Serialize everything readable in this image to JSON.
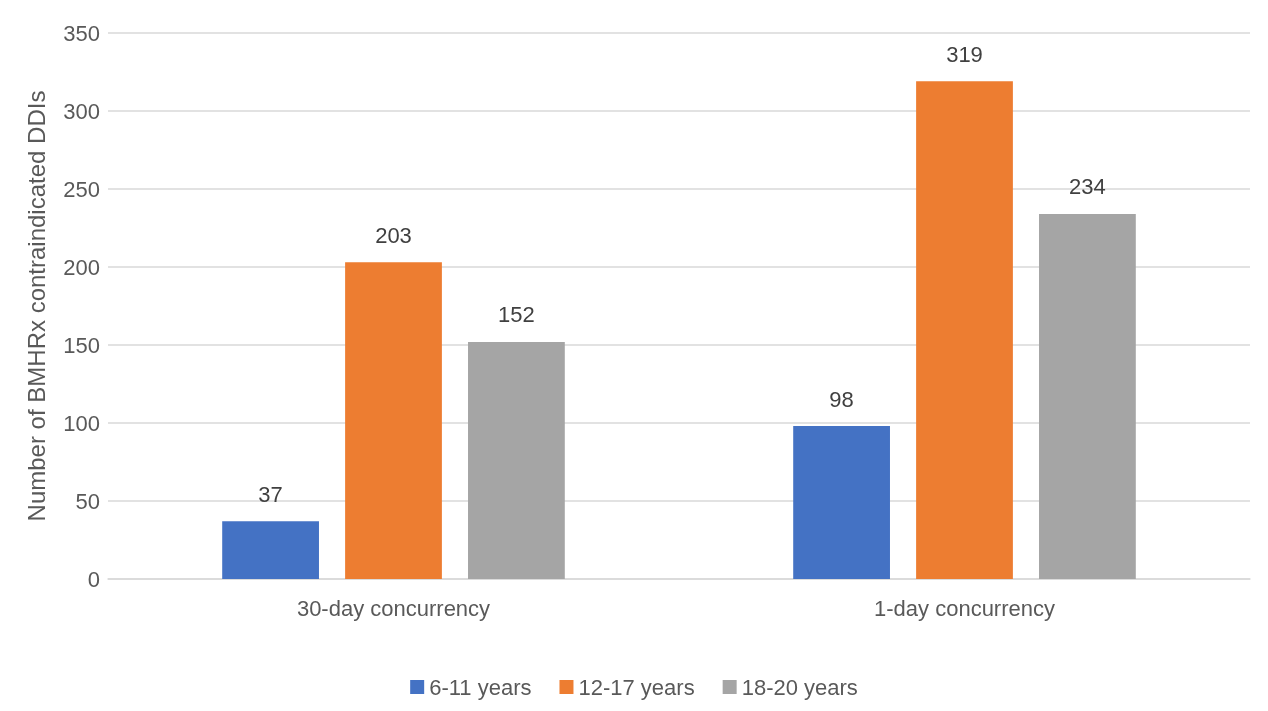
{
  "chart_data": {
    "type": "bar",
    "ylabel": "Number of BMHRx contraindicated DDIs",
    "categories": [
      "30-day concurrency",
      "1-day concurrency"
    ],
    "series": [
      {
        "name": "6-11 years",
        "color": "#4472c4",
        "values": [
          37,
          98
        ]
      },
      {
        "name": "12-17 years",
        "color": "#ed7d31",
        "values": [
          203,
          319
        ]
      },
      {
        "name": "18-20 years",
        "color": "#a5a5a5",
        "values": [
          152,
          234
        ]
      }
    ],
    "ylim": [
      0,
      350
    ],
    "yticks": [
      0,
      50,
      100,
      150,
      200,
      250,
      300,
      350
    ],
    "grid": "y",
    "legend": "bottom",
    "data_labels": true
  }
}
